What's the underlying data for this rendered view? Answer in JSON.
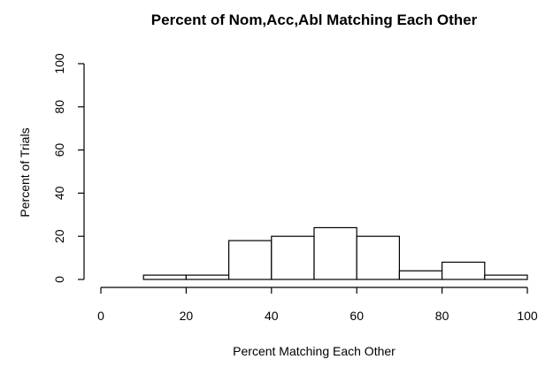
{
  "chart_data": {
    "type": "bar",
    "title": "Percent of Nom,Acc,Abl Matching Each Other",
    "xlabel": "Percent Matching Each Other",
    "ylabel": "Percent of Trials",
    "xlim": [
      0,
      100
    ],
    "ylim": [
      0,
      100
    ],
    "x_ticks": [
      0,
      20,
      40,
      60,
      80,
      100
    ],
    "y_ticks": [
      0,
      20,
      40,
      60,
      80,
      100
    ],
    "bins": [
      {
        "x0": 10,
        "x1": 20,
        "value": 2
      },
      {
        "x0": 20,
        "x1": 30,
        "value": 2
      },
      {
        "x0": 30,
        "x1": 40,
        "value": 18
      },
      {
        "x0": 40,
        "x1": 50,
        "value": 20
      },
      {
        "x0": 50,
        "x1": 60,
        "value": 24
      },
      {
        "x0": 60,
        "x1": 70,
        "value": 20
      },
      {
        "x0": 70,
        "x1": 80,
        "value": 4
      },
      {
        "x0": 80,
        "x1": 90,
        "value": 8
      },
      {
        "x0": 90,
        "x1": 100,
        "value": 2
      }
    ],
    "bar_fill": "#ffffff",
    "bar_stroke": "#000000",
    "grid": false,
    "legend": "none"
  }
}
